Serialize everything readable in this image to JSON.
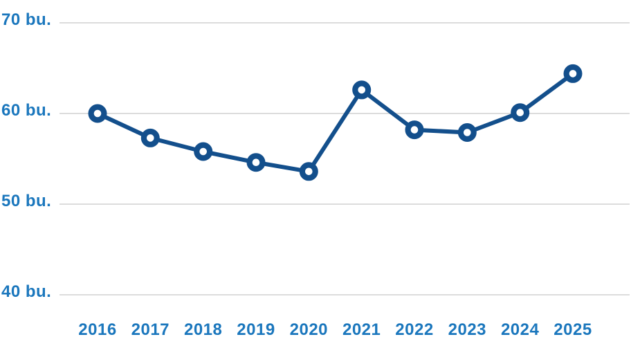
{
  "chart_data": {
    "type": "line",
    "title": "",
    "unit": "bu.",
    "categories": [
      "2016",
      "2017",
      "2018",
      "2019",
      "2020",
      "2021",
      "2022",
      "2023",
      "2024",
      "2025"
    ],
    "series": [
      {
        "name": "",
        "values": [
          60.0,
          57.3,
          55.8,
          54.6,
          53.6,
          62.6,
          58.2,
          57.9,
          60.1,
          64.4
        ]
      }
    ],
    "y_ticks": [
      {
        "value": 70,
        "label": "70 bu."
      },
      {
        "value": 60,
        "label": "60 bu."
      },
      {
        "value": 50,
        "label": "50 bu."
      },
      {
        "value": 40,
        "label": "40 bu."
      }
    ],
    "ylim": [
      40,
      70
    ],
    "grid": true,
    "legend": "none",
    "colors": {
      "line": "#134f8c",
      "marker_fill": "#ffffff",
      "label_text": "#1b77bd",
      "gridline": "#dcdcdc",
      "background": "#ffffff"
    }
  }
}
